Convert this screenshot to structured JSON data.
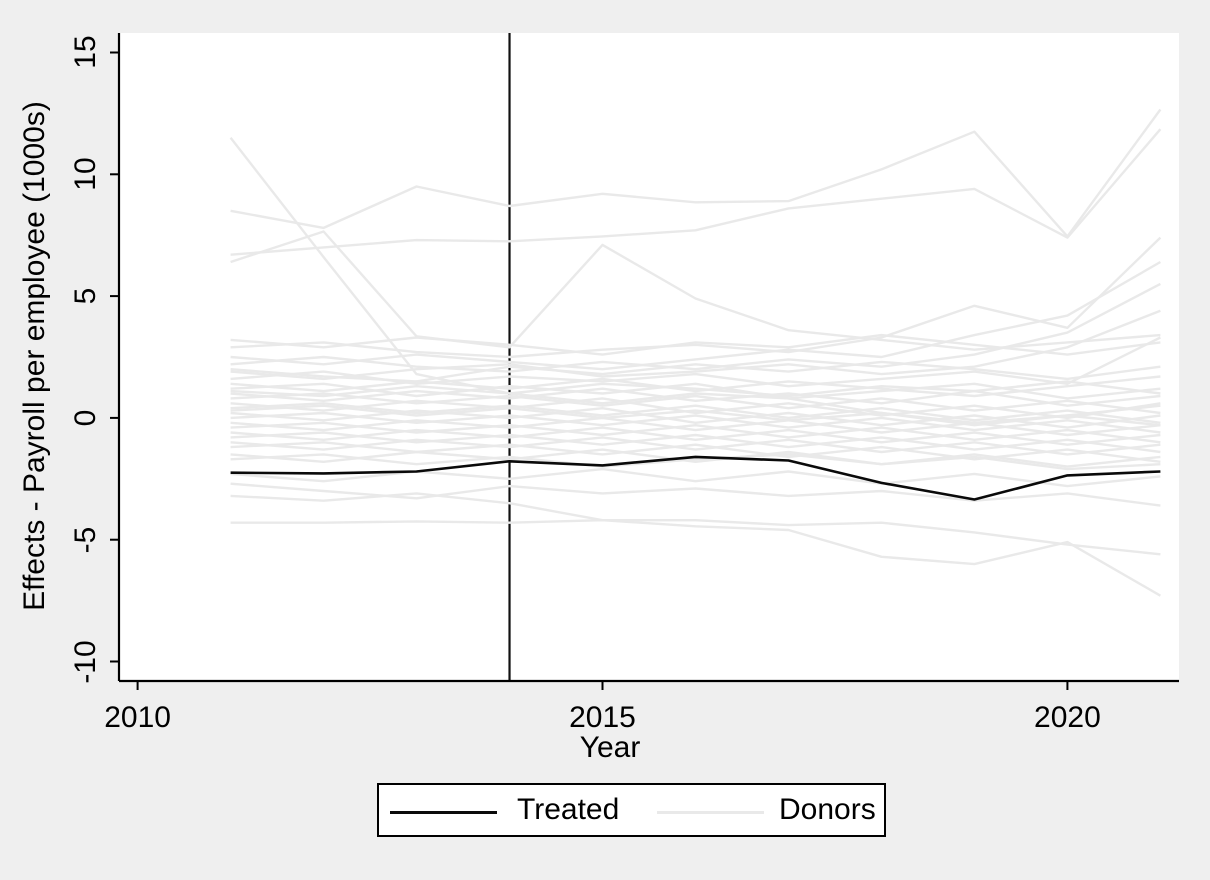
{
  "chart_data": {
    "type": "line",
    "title": "",
    "x": [
      2011,
      2012,
      2013,
      2014,
      2015,
      2016,
      2017,
      2018,
      2019,
      2020,
      2021
    ],
    "axes": {
      "xlabel": "Year",
      "ylabel": "Effects - Payroll per employee (1000s)",
      "xticks": [
        2010,
        2015,
        2020
      ],
      "yticks": [
        15,
        10,
        5,
        0,
        -5,
        -10
      ],
      "xlim": [
        2009.8,
        2021.2
      ],
      "ylim": [
        -10.8,
        15.8
      ],
      "grid": false
    },
    "vline": {
      "x": 2014,
      "color": "#111111"
    },
    "treated": {
      "label": "Treated",
      "color": "#0a0a0a",
      "values": [
        -2.25,
        -2.28,
        -2.2,
        -1.78,
        -1.95,
        -1.6,
        -1.75,
        -2.67,
        -3.35,
        -2.36,
        -2.2
      ]
    },
    "donors": {
      "label": "Donors",
      "color": "#e9e9e9",
      "series": [
        [
          11.5,
          6.6,
          1.8,
          1.0,
          0.6,
          1.0,
          0.8,
          0.2,
          -0.3,
          0.1,
          0.5
        ],
        [
          6.4,
          7.65,
          3.35,
          2.9,
          7.1,
          4.9,
          3.6,
          3.2,
          2.8,
          3.1,
          3.4
        ],
        [
          8.5,
          7.8,
          9.5,
          8.7,
          9.2,
          8.85,
          8.9,
          10.2,
          11.75,
          7.45,
          12.66
        ],
        [
          6.7,
          7.0,
          7.3,
          7.25,
          7.45,
          7.7,
          8.6,
          9.0,
          9.4,
          7.4,
          11.85
        ],
        [
          2.9,
          3.1,
          2.7,
          2.5,
          2.8,
          3.0,
          2.7,
          3.3,
          4.6,
          3.7,
          7.4
        ],
        [
          2.5,
          2.2,
          2.6,
          2.3,
          2.0,
          2.4,
          2.8,
          2.5,
          3.4,
          4.2,
          6.4
        ],
        [
          2.2,
          2.5,
          2.1,
          1.9,
          2.3,
          2.0,
          2.4,
          2.1,
          2.6,
          3.5,
          5.5
        ],
        [
          1.9,
          1.6,
          2.0,
          2.2,
          1.7,
          1.9,
          2.2,
          1.8,
          2.1,
          2.9,
          4.4
        ],
        [
          1.6,
          1.9,
          1.4,
          1.7,
          1.5,
          1.8,
          1.3,
          1.6,
          1.9,
          1.4,
          3.3
        ],
        [
          1.4,
          1.1,
          1.5,
          1.2,
          1.6,
          1.1,
          1.5,
          1.2,
          0.9,
          1.3,
          1.7
        ],
        [
          1.2,
          1.4,
          0.9,
          1.3,
          1.0,
          1.4,
          0.8,
          1.1,
          1.4,
          0.8,
          1.2
        ],
        [
          1.0,
          0.7,
          1.1,
          0.8,
          1.2,
          0.7,
          1.0,
          0.6,
          1.1,
          0.5,
          0.9
        ],
        [
          0.8,
          1.0,
          0.6,
          0.9,
          0.5,
          0.9,
          0.4,
          0.8,
          0.3,
          0.7,
          0.2
        ],
        [
          0.6,
          0.3,
          0.7,
          0.4,
          0.8,
          0.2,
          0.6,
          0.1,
          0.5,
          0.0,
          0.6
        ],
        [
          0.4,
          0.6,
          0.2,
          0.5,
          0.1,
          0.5,
          0.0,
          0.4,
          -0.1,
          0.3,
          -0.2
        ],
        [
          0.2,
          -0.1,
          0.3,
          0.0,
          0.4,
          -0.2,
          0.2,
          -0.3,
          0.1,
          -0.4,
          0.1
        ],
        [
          0.0,
          0.2,
          -0.2,
          0.1,
          -0.3,
          0.1,
          -0.4,
          0.0,
          -0.5,
          -0.1,
          -0.6
        ],
        [
          -0.2,
          -0.5,
          -0.1,
          -0.4,
          0.0,
          -0.5,
          -0.1,
          -0.6,
          -0.2,
          -0.7,
          -0.3
        ],
        [
          -0.4,
          -0.2,
          -0.6,
          -0.3,
          -0.7,
          -0.3,
          -0.8,
          -0.4,
          -0.9,
          -0.5,
          -1.0
        ],
        [
          -0.6,
          -0.9,
          -0.5,
          -0.8,
          -0.4,
          -0.9,
          -0.5,
          -1.0,
          -0.6,
          -1.1,
          -0.7
        ],
        [
          -0.8,
          -0.6,
          -1.0,
          -0.7,
          -1.1,
          -0.7,
          -1.2,
          -0.8,
          -1.3,
          -0.9,
          -1.4
        ],
        [
          -1.0,
          -1.3,
          -0.9,
          -1.2,
          -0.8,
          -1.3,
          -0.9,
          -1.4,
          -1.0,
          -1.5,
          -1.1
        ],
        [
          -1.2,
          -1.0,
          -1.4,
          -1.1,
          -1.5,
          -1.1,
          -1.6,
          -1.2,
          -1.7,
          -1.3,
          -1.8
        ],
        [
          -1.5,
          -1.8,
          -1.4,
          -1.7,
          -1.3,
          -1.8,
          -1.4,
          -1.9,
          -1.5,
          -2.0,
          -1.6
        ],
        [
          -2.7,
          -3.0,
          -3.3,
          -2.8,
          -3.1,
          -2.9,
          -3.2,
          -3.0,
          -3.4,
          -3.1,
          -3.6
        ],
        [
          -3.2,
          -3.4,
          -3.1,
          -3.5,
          -4.2,
          -4.2,
          -4.4,
          -4.3,
          -4.7,
          -5.2,
          -5.6
        ],
        [
          -4.3,
          -4.3,
          -4.25,
          -4.3,
          -4.2,
          -4.45,
          -4.6,
          -5.7,
          -6.0,
          -5.1,
          -7.3
        ],
        [
          3.2,
          2.9,
          3.3,
          3.0,
          2.6,
          3.1,
          2.9,
          3.4,
          3.0,
          2.6,
          3.1
        ],
        [
          -2.3,
          -2.6,
          -2.2,
          -2.5,
          -2.1,
          -2.6,
          -2.2,
          -2.7,
          -2.3,
          -2.8,
          -2.4
        ],
        [
          0.3,
          0.5,
          0.1,
          0.4,
          0.0,
          0.3,
          -0.1,
          0.2,
          -0.2,
          0.1,
          -0.3
        ],
        [
          1.1,
          0.9,
          1.3,
          1.0,
          1.4,
          1.2,
          0.9,
          1.3,
          1.1,
          1.5,
          1.0
        ],
        [
          -1.7,
          -1.5,
          -1.9,
          -1.6,
          -2.0,
          -1.7,
          -1.5,
          -1.9,
          -1.6,
          -2.1,
          -1.9
        ],
        [
          2.0,
          1.7,
          1.5,
          2.1,
          1.8,
          2.2,
          1.9,
          2.3,
          2.0,
          1.6,
          2.1
        ]
      ]
    },
    "legend": {
      "position": "bottom",
      "entries": [
        {
          "label": "Treated",
          "color": "#0a0a0a"
        },
        {
          "label": "Donors",
          "color": "#e9e9e9"
        }
      ]
    },
    "colors": {
      "background": "#efefef",
      "plot_background": "#ffffff",
      "axis": "#000000"
    }
  }
}
